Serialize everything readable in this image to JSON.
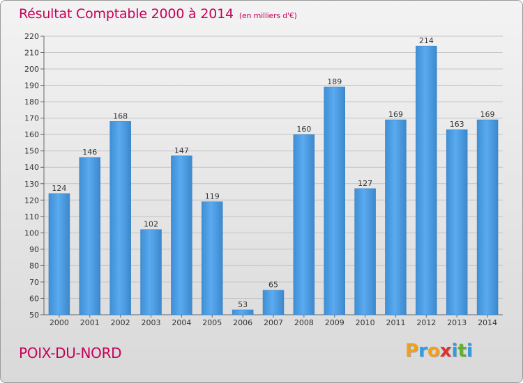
{
  "chart_data": {
    "type": "bar",
    "title": "Résultat Comptable 2000 à 2014",
    "subtitle": "(en milliers d'€)",
    "categories": [
      "2000",
      "2001",
      "2002",
      "2003",
      "2004",
      "2005",
      "2006",
      "2007",
      "2008",
      "2009",
      "2010",
      "2011",
      "2012",
      "2013",
      "2014"
    ],
    "values": [
      124,
      146,
      168,
      102,
      147,
      119,
      53,
      65,
      160,
      189,
      127,
      169,
      214,
      163,
      169
    ],
    "ylim": [
      50,
      220
    ],
    "yticks": [
      50,
      60,
      70,
      80,
      90,
      100,
      110,
      120,
      130,
      140,
      150,
      160,
      170,
      180,
      190,
      200,
      210,
      220
    ],
    "grid": true,
    "bar_color": "#4f9fe0"
  },
  "location": "POIX-DU-NORD",
  "brand": {
    "letters": [
      "P",
      "r",
      "o",
      "x",
      "i",
      "t",
      "i"
    ],
    "colors": [
      "#f0a020",
      "#2f9be0",
      "#f0a020",
      "#e03030",
      "#2f9be0",
      "#60b030",
      "#2f9be0"
    ]
  }
}
